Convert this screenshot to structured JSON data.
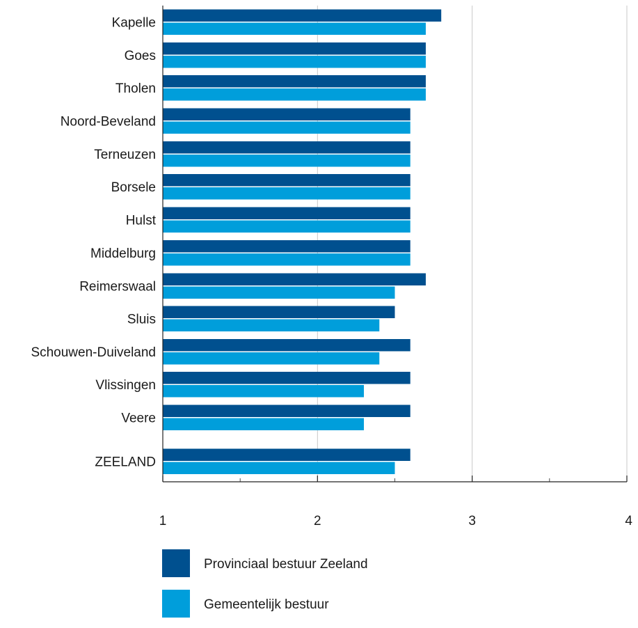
{
  "chart_data": {
    "type": "bar",
    "orientation": "horizontal",
    "categories": [
      "Kapelle",
      "Goes",
      "Tholen",
      "Noord-Beveland",
      "Terneuzen",
      "Borsele",
      "Hulst",
      "Middelburg",
      "Reimerswaal",
      "Sluis",
      "Schouwen-Duiveland",
      "Vlissingen",
      "Veere",
      "ZEELAND"
    ],
    "series": [
      {
        "name": "Provinciaal bestuur Zeeland",
        "color": "#00508f",
        "values": [
          2.8,
          2.7,
          2.7,
          2.6,
          2.6,
          2.6,
          2.6,
          2.6,
          2.7,
          2.5,
          2.6,
          2.6,
          2.6,
          2.6
        ]
      },
      {
        "name": "Gemeentelijk bestuur",
        "color": "#009edb",
        "values": [
          2.7,
          2.7,
          2.7,
          2.6,
          2.6,
          2.6,
          2.6,
          2.6,
          2.5,
          2.4,
          2.4,
          2.3,
          2.3,
          2.5
        ]
      }
    ],
    "xlim": [
      1,
      4
    ],
    "xticks": [
      "1",
      "2",
      "3",
      "4"
    ],
    "grid": "vertical",
    "legend_position": "bottom-left",
    "title": "",
    "xlabel": "",
    "ylabel": ""
  }
}
